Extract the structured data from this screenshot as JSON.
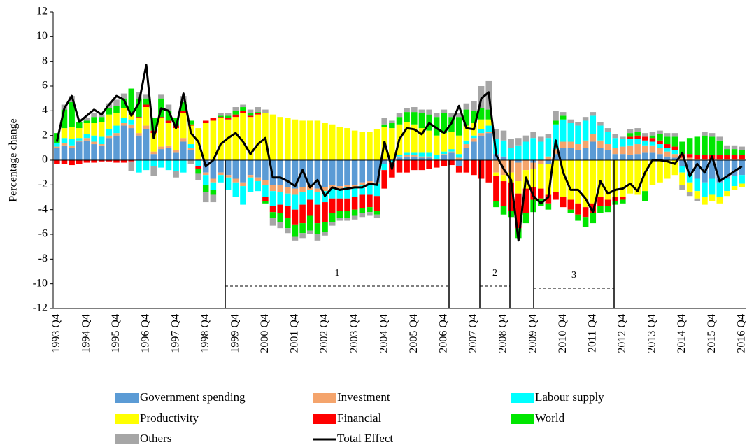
{
  "chart_data": {
    "type": "bar",
    "stacked": true,
    "y_label": "Percentage change",
    "ylim": [
      -12,
      12
    ],
    "yticks": [
      -12,
      -10,
      -8,
      -6,
      -4,
      -2,
      0,
      2,
      4,
      6,
      8,
      10,
      12
    ],
    "categories": [
      "1993 Q4",
      null,
      null,
      null,
      "1994 Q4",
      null,
      null,
      null,
      "1995 Q4",
      null,
      null,
      null,
      "1996 Q4",
      null,
      null,
      null,
      "1997 Q4",
      null,
      null,
      null,
      "1998 Q4",
      null,
      null,
      null,
      "1999 Q4",
      null,
      null,
      null,
      "2000 Q4",
      null,
      null,
      null,
      "2001 Q4",
      null,
      null,
      null,
      "2002 Q4",
      null,
      null,
      null,
      "2003 Q4",
      null,
      null,
      null,
      "2004 Q4",
      null,
      null,
      null,
      "2005 Q4",
      null,
      null,
      null,
      "2006 Q4",
      null,
      null,
      null,
      "2007 Q4",
      null,
      null,
      null,
      "2008 Q4",
      null,
      null,
      null,
      "2009 Q4",
      null,
      null,
      null,
      "2010 Q4",
      null,
      null,
      null,
      "2011 Q4",
      null,
      null,
      null,
      "2012 Q4",
      null,
      null,
      null,
      "2013 Q4",
      null,
      null,
      null,
      "2014 Q4",
      null,
      null,
      null,
      "2015 Q4",
      null,
      null,
      null,
      "2016 Q4"
    ],
    "series": [
      {
        "name": "Government spending",
        "color": "#5b9bd5",
        "values": [
          1.0,
          1.2,
          1.0,
          1.5,
          1.6,
          1.3,
          1.2,
          1.8,
          2.0,
          2.8,
          2.6,
          2.0,
          2.5,
          0.5,
          0.9,
          1.0,
          0.6,
          1.5,
          0.8,
          0.0,
          -1.0,
          -1.5,
          -1.0,
          -1.2,
          -1.5,
          -1.8,
          -1.2,
          -1.4,
          -1.6,
          -2.0,
          -2.0,
          -2.2,
          -2.3,
          -2.2,
          -2.0,
          -2.3,
          -2.2,
          -2.0,
          -2.1,
          -2.0,
          -2.0,
          -1.8,
          -1.7,
          -1.8,
          -0.3,
          0.0,
          0.2,
          0.3,
          0.3,
          0.2,
          0.2,
          0.0,
          0.4,
          0.6,
          -0.5,
          1.0,
          1.5,
          2.0,
          2.2,
          0.5,
          0.3,
          0.0,
          -0.2,
          0.0,
          -0.2,
          0.0,
          -0.3,
          0.5,
          1.0,
          1.0,
          0.8,
          1.0,
          1.5,
          1.0,
          0.8,
          0.5,
          0.5,
          0.4,
          0.5,
          0.6,
          0.6,
          0.5,
          0.3,
          0.2,
          -0.5,
          -1.0,
          -1.5,
          -1.8,
          -1.5,
          -1.8,
          -1.5,
          -1.3,
          -1.2
        ]
      },
      {
        "name": "Investment",
        "color": "#f4a46c",
        "values": [
          0.1,
          0.2,
          0.2,
          0.1,
          0.2,
          0.2,
          0.1,
          0.2,
          0.2,
          0.2,
          0.3,
          0.2,
          0.3,
          0.2,
          0.2,
          0.2,
          0.2,
          0.3,
          0.2,
          0.1,
          -0.2,
          -0.3,
          -0.2,
          -0.2,
          -0.3,
          -0.3,
          -0.2,
          -0.3,
          -0.4,
          -0.5,
          -0.6,
          -0.5,
          -0.5,
          -0.4,
          -0.4,
          -0.3,
          -0.3,
          -0.3,
          -0.2,
          -0.2,
          -0.2,
          -0.2,
          -0.2,
          -0.1,
          0.1,
          0.1,
          0.1,
          0.1,
          0.1,
          0.1,
          0.1,
          0.1,
          0.1,
          0.1,
          0.2,
          0.3,
          0.3,
          0.2,
          0.1,
          -1.0,
          -1.2,
          -1.0,
          -1.5,
          -0.8,
          -0.5,
          -0.3,
          0.3,
          0.4,
          0.5,
          0.5,
          0.5,
          0.6,
          0.6,
          0.6,
          0.5,
          0.5,
          0.6,
          0.8,
          0.8,
          0.6,
          0.6,
          0.5,
          0.4,
          0.3,
          0.2,
          0.2,
          0.1,
          0.1,
          0.1,
          0.1,
          0.1,
          0.1,
          0.1
        ]
      },
      {
        "name": "Labour supply",
        "color": "#00ffff",
        "values": [
          0.3,
          0.4,
          0.5,
          0.2,
          0.3,
          0.5,
          0.6,
          0.5,
          0.6,
          0.4,
          0.4,
          -1.0,
          -0.8,
          -0.5,
          -0.6,
          -0.8,
          -0.9,
          -1.0,
          0.3,
          -0.5,
          -0.8,
          -0.6,
          -0.6,
          -1.0,
          -1.2,
          -1.5,
          -1.2,
          -0.8,
          -1.0,
          -1.2,
          -1.0,
          -1.0,
          -1.2,
          -1.0,
          -0.8,
          -1.0,
          -0.9,
          -0.8,
          -0.8,
          -0.9,
          -0.8,
          -0.8,
          -0.9,
          -1.0,
          -0.5,
          -0.2,
          0.1,
          0.2,
          0.2,
          0.3,
          0.3,
          0.3,
          0.2,
          0.2,
          0.3,
          0.3,
          0.2,
          0.3,
          0.5,
          1.2,
          1.3,
          1.0,
          1.2,
          1.5,
          1.8,
          1.5,
          1.5,
          2.0,
          1.8,
          1.5,
          1.5,
          1.6,
          1.5,
          1.2,
          1.0,
          0.8,
          0.6,
          0.5,
          0.4,
          0.4,
          0.3,
          0.3,
          0.3,
          0.3,
          -0.5,
          -0.8,
          -1.0,
          -1.2,
          -1.3,
          -1.2,
          -1.0,
          -0.8,
          -0.7
        ]
      },
      {
        "name": "Productivity",
        "color": "#ffff00",
        "values": [
          0.0,
          0.8,
          1.0,
          0.8,
          0.9,
          1.0,
          1.2,
          1.2,
          1.0,
          0.8,
          0.5,
          1.2,
          1.5,
          1.5,
          2.3,
          1.8,
          1.8,
          2.0,
          1.5,
          2.5,
          3.0,
          3.2,
          3.4,
          3.3,
          3.5,
          3.8,
          3.5,
          3.7,
          3.8,
          3.7,
          3.5,
          3.4,
          3.3,
          3.2,
          3.2,
          3.2,
          3.0,
          2.9,
          2.7,
          2.6,
          2.4,
          2.3,
          2.3,
          2.5,
          2.6,
          2.5,
          2.5,
          2.5,
          2.3,
          2.0,
          1.8,
          1.6,
          1.5,
          1.4,
          1.5,
          1.2,
          1.0,
          0.8,
          0.5,
          -0.3,
          -0.5,
          -0.8,
          -1.0,
          -1.5,
          -1.5,
          -2.0,
          -2.5,
          -2.6,
          -3.0,
          -3.2,
          -3.5,
          -3.8,
          -3.5,
          -3.0,
          -3.2,
          -3.0,
          -3.0,
          -2.7,
          -2.8,
          -2.5,
          -2.0,
          -1.8,
          -1.5,
          -1.2,
          -1.0,
          -0.8,
          -0.6,
          -0.6,
          -0.5,
          -0.5,
          -0.4,
          -0.3,
          -0.3
        ]
      },
      {
        "name": "Financial",
        "color": "#ff0000",
        "values": [
          -0.3,
          -0.3,
          -0.4,
          -0.3,
          -0.2,
          -0.2,
          -0.1,
          -0.1,
          -0.2,
          -0.2,
          -0.1,
          0.1,
          0.2,
          0.2,
          0.1,
          0.2,
          0.2,
          0.2,
          0.1,
          -0.2,
          0.2,
          0.2,
          0.1,
          0.1,
          0.2,
          0.2,
          0.1,
          0.1,
          -0.3,
          -0.5,
          -0.7,
          -1.0,
          -1.2,
          -1.5,
          -1.3,
          -1.5,
          -1.6,
          -1.2,
          -1.0,
          -1.0,
          -1.0,
          -1.1,
          -1.0,
          -1.2,
          -1.5,
          -1.2,
          -1.0,
          -1.0,
          -0.8,
          -0.8,
          -0.7,
          -0.6,
          -0.5,
          -0.4,
          -0.5,
          -1.0,
          -1.2,
          -1.5,
          -1.8,
          -2.0,
          -2.0,
          -2.3,
          -2.8,
          -2.0,
          -1.0,
          -0.8,
          -0.7,
          -0.6,
          -0.8,
          -0.8,
          -0.9,
          -0.8,
          -0.8,
          -0.7,
          -0.5,
          -0.3,
          -0.2,
          0.2,
          0.3,
          0.3,
          0.3,
          0.3,
          0.3,
          0.3,
          0.3,
          0.3,
          0.3,
          0.3,
          0.3,
          0.3,
          0.3,
          0.3,
          0.3
        ]
      },
      {
        "name": "World",
        "color": "#00e600",
        "values": [
          0.8,
          1.5,
          2.0,
          0.5,
          0.2,
          0.5,
          0.4,
          0.5,
          0.6,
          0.8,
          2.0,
          1.5,
          0.5,
          1.0,
          1.5,
          0.8,
          0.6,
          0.7,
          0.3,
          -0.4,
          -0.6,
          -0.4,
          0.1,
          0.2,
          0.3,
          0.3,
          0.2,
          0.1,
          -0.2,
          -0.5,
          -0.7,
          -0.8,
          -1.0,
          -0.8,
          -1.2,
          -0.9,
          -0.8,
          -0.7,
          -0.6,
          -0.6,
          -0.5,
          -0.4,
          -0.4,
          -0.3,
          0.2,
          0.4,
          0.6,
          0.8,
          1.0,
          1.2,
          1.3,
          1.5,
          1.6,
          1.2,
          1.5,
          1.3,
          1.0,
          0.9,
          0.8,
          -0.5,
          -0.7,
          -0.5,
          -0.8,
          -0.8,
          -1.0,
          -0.6,
          -0.5,
          0.3,
          0.3,
          -0.3,
          -0.5,
          -0.8,
          -0.8,
          -0.6,
          -0.5,
          -0.3,
          -0.3,
          0.3,
          0.3,
          -0.8,
          0.2,
          0.5,
          0.6,
          0.8,
          1.0,
          1.3,
          1.5,
          1.6,
          1.5,
          1.2,
          0.5,
          0.5,
          0.4
        ]
      },
      {
        "name": "Others",
        "color": "#a6a6a6",
        "values": [
          0.0,
          0.4,
          0.5,
          0.0,
          0.2,
          0.3,
          0.2,
          0.4,
          0.5,
          0.4,
          -0.8,
          0.5,
          0.3,
          -0.8,
          0.3,
          0.5,
          -0.5,
          0.5,
          -0.3,
          -0.5,
          -0.8,
          -0.6,
          0.2,
          0.2,
          0.3,
          0.2,
          0.3,
          0.4,
          0.3,
          -0.6,
          -0.5,
          -0.4,
          -0.3,
          -0.4,
          -0.3,
          -0.5,
          -0.3,
          -0.3,
          -0.2,
          -0.2,
          -0.3,
          -0.3,
          -0.3,
          -0.3,
          0.5,
          0.2,
          0.3,
          0.3,
          0.4,
          0.3,
          0.4,
          0.3,
          0.3,
          0.3,
          0.3,
          0.5,
          0.8,
          1.8,
          2.3,
          0.8,
          0.8,
          0.7,
          0.6,
          0.5,
          0.5,
          0.4,
          0.3,
          0.8,
          0.3,
          0.3,
          0.3,
          0.3,
          0.3,
          0.3,
          0.3,
          0.3,
          0.2,
          0.3,
          0.3,
          0.3,
          0.3,
          0.3,
          0.3,
          0.3,
          -0.4,
          -0.3,
          -0.2,
          0.3,
          0.3,
          0.3,
          0.3,
          0.3,
          0.3
        ]
      },
      {
        "name": "Total Effect",
        "color": "#000000",
        "type": "line",
        "values": [
          1.5,
          4.2,
          5.2,
          3.1,
          3.6,
          4.1,
          3.7,
          4.5,
          5.2,
          4.9,
          3.6,
          4.6,
          7.7,
          1.8,
          4.2,
          4.0,
          2.6,
          5.4,
          2.2,
          1.5,
          -0.5,
          0.0,
          1.3,
          1.8,
          2.2,
          1.5,
          0.5,
          1.3,
          1.8,
          -1.4,
          -1.4,
          -1.7,
          -2.1,
          -0.8,
          -2.2,
          -1.6,
          -2.9,
          -2.2,
          -2.4,
          -2.3,
          -2.2,
          -2.2,
          -1.9,
          -2.0,
          1.5,
          -0.7,
          1.7,
          2.6,
          2.5,
          2.1,
          3.0,
          2.6,
          2.2,
          3.0,
          4.4,
          2.6,
          2.5,
          5.0,
          5.5,
          0.4,
          -0.7,
          -1.6,
          -6.5,
          -1.4,
          -2.9,
          -3.5,
          -3.0,
          1.6,
          -1.0,
          -2.4,
          -2.4,
          -3.1,
          -4.2,
          -1.7,
          -2.7,
          -2.4,
          -2.3,
          -1.9,
          -2.5,
          -1.0,
          0.0,
          0.0,
          -0.1,
          -0.3,
          0.6,
          -1.3,
          -0.3,
          -1.0,
          0.3,
          -1.7,
          -1.3,
          -0.9,
          -0.5
        ]
      }
    ],
    "annotations": [
      "1",
      "2",
      "3"
    ]
  }
}
